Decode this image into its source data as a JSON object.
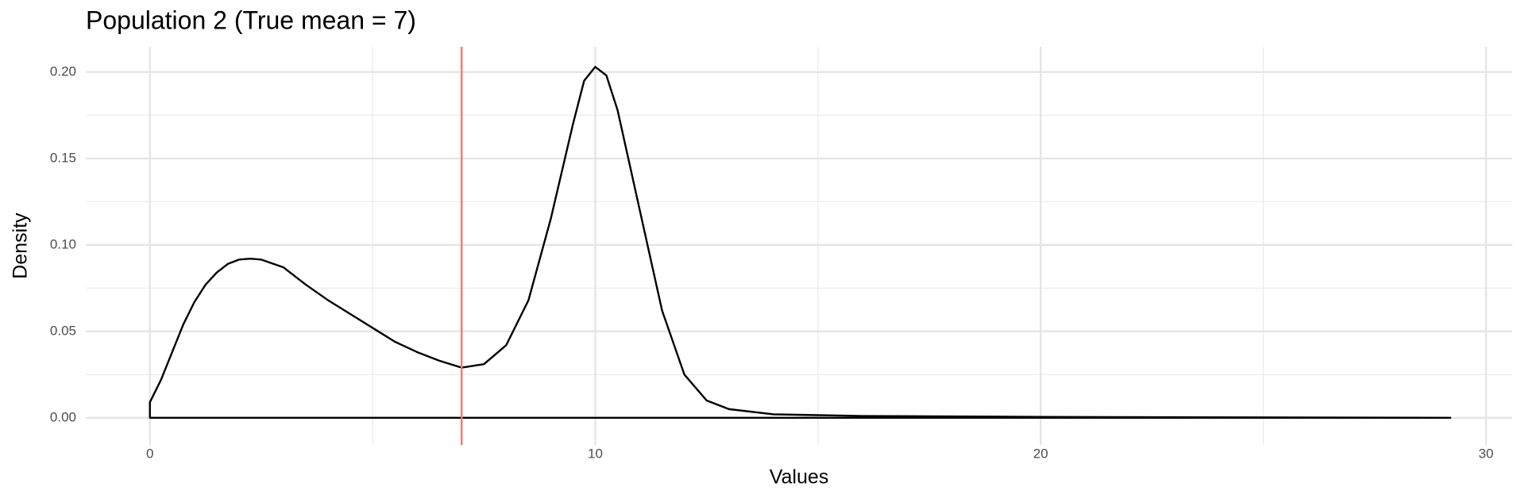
{
  "chart_data": {
    "type": "line",
    "title": "Population 2 (True mean = 7)",
    "x_label": "Values",
    "y_label": "Density",
    "xlim": [
      -1.44,
      30.59
    ],
    "ylim": [
      -0.0157,
      0.2146
    ],
    "xticks": [
      0,
      10,
      20,
      30
    ],
    "yticks": [
      {
        "value": 0,
        "label": "0.00"
      },
      {
        "value": 0.05,
        "label": "0.05"
      },
      {
        "value": 0.1,
        "label": "0.10"
      },
      {
        "value": 0.15,
        "label": "0.15"
      },
      {
        "value": 0.2,
        "label": "0.20"
      }
    ],
    "x_minor_grid": [
      5,
      15,
      25
    ],
    "y_minor_grid": [
      0.025,
      0.075,
      0.125,
      0.175
    ],
    "grid": true,
    "series": [
      {
        "color": "#000000",
        "x": [
          0,
          0,
          0.25,
          0.5,
          0.75,
          1.0,
          1.25,
          1.5,
          1.75,
          2.0,
          2.25,
          2.5,
          3.0,
          3.5,
          4.0,
          4.5,
          5.0,
          5.5,
          6.0,
          6.5,
          7.0,
          7.5,
          8.0,
          8.5,
          9.0,
          9.5,
          9.75,
          10.0,
          10.25,
          10.5,
          11.0,
          11.5,
          12.0,
          12.5,
          13.0,
          14.0,
          16.0,
          20.0,
          25.0,
          29.2
        ],
        "values": [
          0,
          0.009,
          0.022,
          0.038,
          0.054,
          0.067,
          0.077,
          0.084,
          0.089,
          0.0915,
          0.092,
          0.0915,
          0.087,
          0.077,
          0.068,
          0.06,
          0.052,
          0.044,
          0.038,
          0.033,
          0.029,
          0.031,
          0.042,
          0.068,
          0.115,
          0.17,
          0.195,
          0.203,
          0.198,
          0.178,
          0.12,
          0.062,
          0.025,
          0.01,
          0.005,
          0.002,
          0.001,
          0.0005,
          0.0002,
          0
        ]
      }
    ],
    "vline": {
      "x": 7,
      "color": "#f8766d"
    }
  }
}
